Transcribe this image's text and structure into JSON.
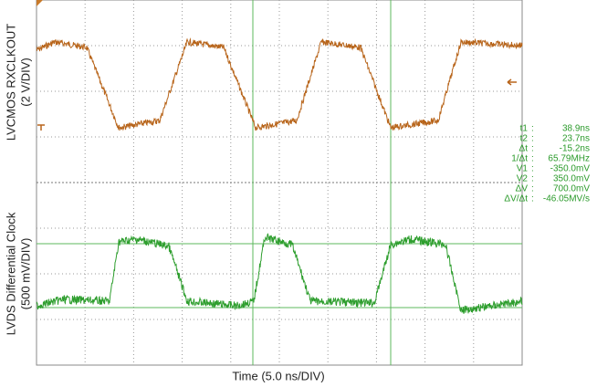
{
  "channels": [
    {
      "name": "LVCMOS RXCLKOUT",
      "scale": "(2 V/DIV)"
    },
    {
      "name": "LVDS Differential Clock",
      "scale": "(500 mV/DIV)"
    }
  ],
  "x_axis_label": "Time (5.0 ns/DIV)",
  "readout": [
    {
      "label": "t1",
      "value": "38.9ns"
    },
    {
      "label": "t2",
      "value": "23.7ns"
    },
    {
      "label": "Δt",
      "value": "-15.2ns"
    },
    {
      "label": "1/Δt",
      "value": "65.79MHz"
    },
    {
      "label": "V1",
      "value": "-350.0mV"
    },
    {
      "label": "V2",
      "value": "350.0mV"
    },
    {
      "label": "ΔV",
      "value": "700.0mV"
    },
    {
      "label": "ΔV/Δt",
      "value": "-46.05MV/s"
    }
  ]
}
